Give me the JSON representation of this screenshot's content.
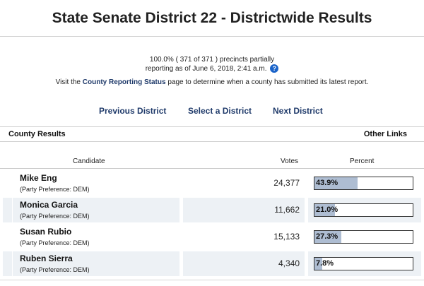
{
  "page": {
    "title": "State Senate District 22 - Districtwide Results"
  },
  "status": {
    "line1": "100.0% ( 371 of 371 ) precincts partially",
    "line2": "reporting as of June 6, 2018, 2:41 a.m.",
    "help_icon": "question-mark-icon",
    "help_glyph": "?",
    "visit_prefix": "Visit the",
    "visit_link": "County Reporting Status",
    "visit_suffix": "page to determine when a county has submitted its latest report."
  },
  "nav": {
    "previous": "Previous District",
    "select": "Select a District",
    "next": "Next District"
  },
  "section": {
    "left": "County Results",
    "right": "Other Links"
  },
  "table": {
    "headers": {
      "candidate": "Candidate",
      "votes": "Votes",
      "percent": "Percent"
    },
    "rows": [
      {
        "name": "Mike Eng",
        "party": "(Party Preference: DEM)",
        "votes": "24,377",
        "percent": "43.9%",
        "fraction": 0.439
      },
      {
        "name": "Monica Garcia",
        "party": "(Party Preference: DEM)",
        "votes": "11,662",
        "percent": "21.0%",
        "fraction": 0.21
      },
      {
        "name": "Susan Rubio",
        "party": "(Party Preference: DEM)",
        "votes": "15,133",
        "percent": "27.3%",
        "fraction": 0.273
      },
      {
        "name": "Ruben Sierra",
        "party": "(Party Preference: DEM)",
        "votes": "4,340",
        "percent": "7.8%",
        "fraction": 0.078
      }
    ]
  },
  "colors": {
    "bar_fill": "#aebdd2",
    "alt_row": "#edf1f5",
    "link": "#1f3a6a",
    "help": "#1a63c9"
  }
}
